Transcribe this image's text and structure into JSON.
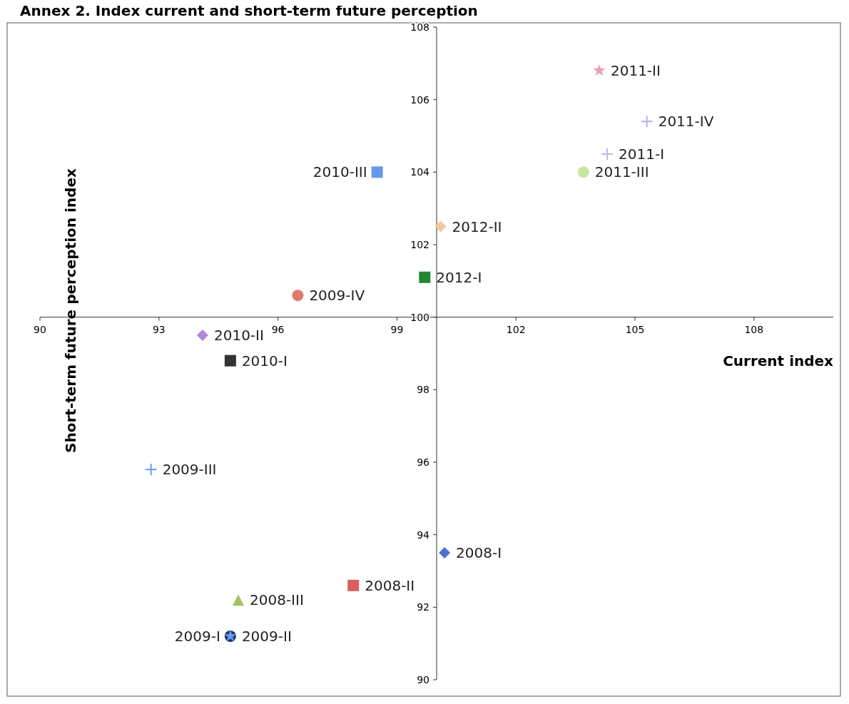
{
  "chart_data": {
    "type": "scatter",
    "title": "Annex 2. Index current and short-term future perception",
    "xlabel": "Current index",
    "ylabel": "Short-term future perception index",
    "xlim": [
      90,
      110
    ],
    "xticks": [
      90,
      93,
      96,
      99,
      102,
      105,
      108
    ],
    "ylim": [
      90,
      108
    ],
    "yticks": [
      90,
      92,
      94,
      96,
      98,
      100,
      102,
      104,
      106,
      108
    ],
    "grid": false,
    "series": [
      {
        "name": "2008-I",
        "color": "#4a72d0",
        "marker": "diamond",
        "x": [
          100.2
        ],
        "values": [
          93.5
        ]
      },
      {
        "name": "2008-II",
        "color": "#d86060",
        "marker": "square",
        "x": [
          97.9
        ],
        "values": [
          92.6
        ]
      },
      {
        "name": "2008-III",
        "color": "#a8c060",
        "marker": "triangle",
        "x": [
          95.0
        ],
        "values": [
          92.2
        ]
      },
      {
        "name": "2009-I",
        "color": "#223366",
        "marker": "circle",
        "x": [
          94.8
        ],
        "values": [
          91.2
        ]
      },
      {
        "name": "2009-II",
        "color": "#6699ee",
        "marker": "star",
        "x": [
          94.8
        ],
        "values": [
          91.2
        ]
      },
      {
        "name": "2009-III",
        "color": "#6699ee",
        "marker": "cross",
        "x": [
          92.8
        ],
        "values": [
          95.8
        ]
      },
      {
        "name": "2009-IV",
        "color": "#e07a6a",
        "marker": "circle",
        "x": [
          96.5
        ],
        "values": [
          100.6
        ]
      },
      {
        "name": "2010-I",
        "color": "#333333",
        "marker": "square",
        "x": [
          94.8
        ],
        "values": [
          98.8
        ]
      },
      {
        "name": "2010-II",
        "color": "#b088d8",
        "marker": "diamond",
        "x": [
          94.1
        ],
        "values": [
          99.5
        ]
      },
      {
        "name": "2010-III",
        "color": "#6699ee",
        "marker": "square",
        "x": [
          98.5
        ],
        "values": [
          104.0
        ]
      },
      {
        "name": "2011-I",
        "color": "#b8b8f0",
        "marker": "cross",
        "x": [
          104.3
        ],
        "values": [
          104.5
        ]
      },
      {
        "name": "2011-II",
        "color": "#e8a0b0",
        "marker": "star",
        "x": [
          104.1
        ],
        "values": [
          106.8
        ]
      },
      {
        "name": "2011-III",
        "color": "#c8e6a0",
        "marker": "circle",
        "x": [
          103.7
        ],
        "values": [
          104.0
        ]
      },
      {
        "name": "2011-IV",
        "color": "#b0b0f0",
        "marker": "cross",
        "x": [
          105.3
        ],
        "values": [
          105.4
        ]
      },
      {
        "name": "2012-I",
        "color": "#228833",
        "marker": "square",
        "x": [
          99.7
        ],
        "values": [
          101.1
        ]
      },
      {
        "name": "2012-II",
        "color": "#f5c9a0",
        "marker": "diamond",
        "x": [
          100.1
        ],
        "values": [
          102.5
        ]
      }
    ]
  }
}
